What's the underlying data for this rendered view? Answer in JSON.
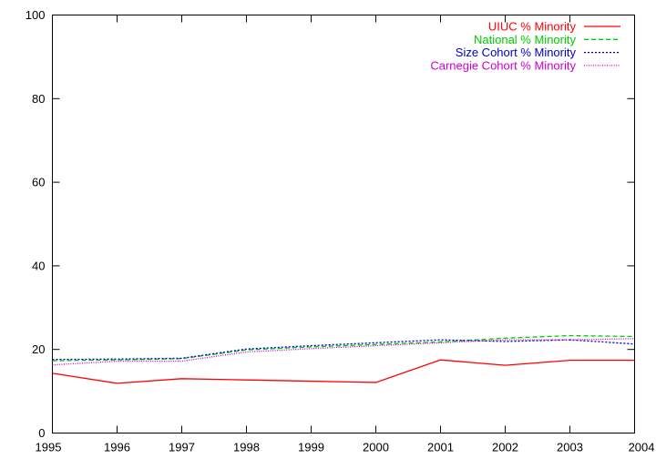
{
  "chart_data": {
    "type": "line",
    "x": [
      1995,
      1996,
      1997,
      1998,
      1999,
      2000,
      2001,
      2002,
      2003,
      2004
    ],
    "xlim": [
      1995,
      2004
    ],
    "ylim": [
      0,
      100
    ],
    "xticks": [
      1995,
      1996,
      1997,
      1998,
      1999,
      2000,
      2001,
      2002,
      2003,
      2004
    ],
    "yticks": [
      0,
      20,
      40,
      60,
      80,
      100
    ],
    "grid": false,
    "legend_position": "top-right",
    "series": [
      {
        "name": "UIUC % Minority",
        "color": "#ff0000",
        "dash": "solid",
        "values": [
          14.3,
          11.9,
          13.0,
          12.7,
          12.4,
          12.1,
          17.5,
          16.2,
          17.4,
          17.4
        ]
      },
      {
        "name": "National % Minority",
        "color": "#00cc00",
        "dash": "dashed",
        "values": [
          17.3,
          17.5,
          17.8,
          19.9,
          20.6,
          21.2,
          21.8,
          22.7,
          23.3,
          23.1
        ]
      },
      {
        "name": "Size Cohort % Minority",
        "color": "#0000cc",
        "dash": "dotted",
        "values": [
          17.6,
          17.7,
          17.9,
          20.1,
          20.9,
          21.6,
          22.3,
          21.9,
          22.3,
          21.3
        ]
      },
      {
        "name": "Carnegie Cohort % Minority",
        "color": "#cc00cc",
        "dash": "finedot",
        "values": [
          16.3,
          17.2,
          17.2,
          19.4,
          20.2,
          20.9,
          21.6,
          22.3,
          22.3,
          22.6
        ]
      }
    ]
  }
}
